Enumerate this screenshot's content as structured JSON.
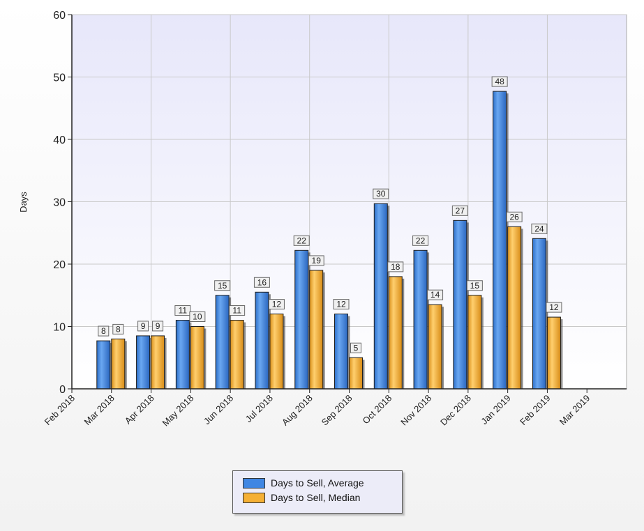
{
  "chart_data": {
    "type": "bar",
    "title": "",
    "ylabel": "Days",
    "xlabel": "",
    "ylim": [
      0,
      60
    ],
    "y_ticks": [
      0,
      10,
      20,
      30,
      40,
      50,
      60
    ],
    "grid": true,
    "legend_position": "bottom",
    "x_tick_labels": [
      "Feb 2018",
      "Mar 2018",
      "Apr 2018",
      "May 2018",
      "Jun 2018",
      "Jul 2018",
      "Aug 2018",
      "Sep 2018",
      "Oct 2018",
      "Nov 2018",
      "Dec 2018",
      "Jan 2019",
      "Feb 2019",
      "Mar 2019"
    ],
    "categories": [
      "Mar 2018",
      "Apr 2018",
      "May 2018",
      "Jun 2018",
      "Jul 2018",
      "Aug 2018",
      "Sep 2018",
      "Oct 2018",
      "Nov 2018",
      "Dec 2018",
      "Jan 2019",
      "Feb 2019"
    ],
    "series": [
      {
        "name": "Days to Sell, Average",
        "color": "#3f86e3",
        "values": [
          7.7,
          8.5,
          11,
          15,
          15.5,
          22.2,
          12,
          29.7,
          22.2,
          27,
          47.7,
          24.1
        ],
        "labels": [
          "8",
          "9",
          "11",
          "15",
          "16",
          "22",
          "12",
          "30",
          "22",
          "27",
          "48",
          "24"
        ]
      },
      {
        "name": "Days to Sell, Median",
        "color": "#f5b035",
        "values": [
          8,
          8.5,
          10,
          11,
          12,
          19,
          5,
          18,
          13.5,
          15,
          26,
          11.5
        ],
        "labels": [
          "8",
          "9",
          "10",
          "11",
          "12",
          "19",
          "5",
          "18",
          "14",
          "15",
          "26",
          "12"
        ]
      }
    ]
  }
}
